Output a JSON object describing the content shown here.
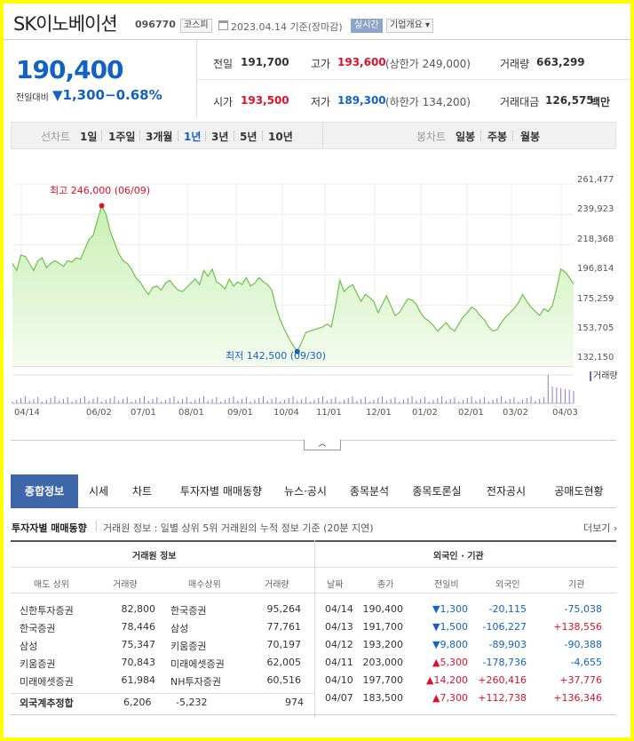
{
  "header": {
    "name": "SK이노베이션",
    "code": "096770",
    "market": "코스피",
    "date": "2023.04.14 기준(장마감)",
    "realtime": "실시간",
    "company": "기업개요 ▾"
  },
  "price": {
    "now": "190,400",
    "change_label": "전일대비",
    "change": "▼1,300",
    "change_pct": "−0.68%"
  },
  "quote": {
    "prev_label": "전일",
    "prev": "191,700",
    "high_label": "고가",
    "high": "193,600",
    "high_sub": "(상한가 249,000)",
    "vol_label": "거래량",
    "vol": "663,299",
    "open_label": "시가",
    "open": "193,500",
    "low_label": "저가",
    "low": "189,300",
    "low_sub": "(하한가 134,200)",
    "amt_label": "거래대금",
    "amt": "126,575",
    "amt_unit": "백만"
  },
  "periods": {
    "label": "선차트",
    "items": [
      "1일",
      "1주일",
      "3개월",
      "1년",
      "3년",
      "5년",
      "10년"
    ],
    "selected": "1년",
    "candle_label": "봉차트",
    "candles": [
      "일봉",
      "주봉",
      "월봉"
    ]
  },
  "chart_data": {
    "type": "line",
    "ylim": [
      132150,
      261477
    ],
    "yticks": [
      "261,477",
      "239,923",
      "218,368",
      "196,814",
      "175,259",
      "153,705",
      "132,150"
    ],
    "xticks": [
      "04/14",
      "06/02",
      "07/01",
      "08/01",
      "09/01",
      "10/04",
      "11/01",
      "12/01",
      "01/02",
      "02/01",
      "03/02",
      "04/03"
    ],
    "max_label": "최고 246,000 (06/09)",
    "min_label": "최저 142,500 (09/30)",
    "volume_label": "거래량",
    "series": [
      {
        "values": [
          205000,
          200000,
          211000,
          210000,
          205000,
          200000,
          207000,
          209000,
          202000,
          205000,
          207000,
          205000,
          203000,
          207000,
          206000,
          209000,
          208000,
          215000,
          222000,
          225000,
          236000,
          246000,
          240000,
          228000,
          220000,
          212000,
          207000,
          205000,
          201000,
          195000,
          192000,
          187000,
          183000,
          188000,
          189000,
          186000,
          191000,
          193000,
          189000,
          186000,
          185000,
          188000,
          191000,
          194000,
          190000,
          200000,
          196000,
          201000,
          192000,
          190000,
          187000,
          194000,
          189000,
          192000,
          190000,
          195000,
          189000,
          191000,
          195000,
          192000,
          190000,
          186000,
          174000,
          165000,
          158000,
          152000,
          147000,
          142500,
          149000,
          156000,
          157000,
          158000,
          159000,
          160000,
          162000,
          160000,
          175000,
          193000,
          185000,
          188000,
          190000,
          184000,
          178000,
          183000,
          181000,
          178000,
          170000,
          176000,
          182000,
          175000,
          168000,
          170000,
          175000,
          180000,
          179000,
          176000,
          170000,
          166000,
          164000,
          161000,
          157000,
          160000,
          163000,
          159000,
          157000,
          162000,
          167000,
          170000,
          174000,
          172000,
          168000,
          165000,
          160000,
          157000,
          158000,
          163000,
          167000,
          170000,
          173000,
          177000,
          183000,
          178000,
          174000,
          171000,
          168000,
          173000,
          171000,
          175000,
          187000,
          201000,
          199000,
          195000,
          190400
        ]
      }
    ]
  },
  "tabs": [
    "종합정보",
    "시세",
    "차트",
    "투자자별 매매동향",
    "뉴스·공시",
    "종목분석",
    "종목토론실",
    "전자공시",
    "공매도현황"
  ],
  "invest": {
    "title": "투자자별 매매동향",
    "desc": "거래원 정보 : 일별 상위 5위 거래원의 누적 정보 기준 (20분 지연)",
    "more": "더보기 ›",
    "left_head": "거래원 정보",
    "right_head": "외국인 · 기관",
    "left_cols": [
      "매도 상위",
      "거래량",
      "매수상위",
      "거래량"
    ],
    "left_rows": [
      [
        "신한투자증권",
        "82,800",
        "한국증권",
        "95,264"
      ],
      [
        "한국증권",
        "78,446",
        "삼성",
        "77,761"
      ],
      [
        "삼성",
        "75,347",
        "키움증권",
        "70,197"
      ],
      [
        "키움증권",
        "70,843",
        "미래에셋증권",
        "62,005"
      ],
      [
        "미래에셋증권",
        "61,984",
        "NH투자증권",
        "60,516"
      ]
    ],
    "foreign_sum": {
      "label": "외국계추정합",
      "sell": "6,206",
      "diff": "-5,232",
      "buy": "974"
    },
    "right_cols": [
      "날짜",
      "종가",
      "전일비",
      "외국인",
      "기관"
    ],
    "right_rows": [
      [
        "04/14",
        "190,400",
        "▼1,300",
        "-20,115",
        "-75,038"
      ],
      [
        "04/13",
        "191,700",
        "▼1,500",
        "-106,227",
        "+138,556"
      ],
      [
        "04/12",
        "193,200",
        "▼9,800",
        "-89,903",
        "-90,388"
      ],
      [
        "04/11",
        "203,000",
        "▲5,300",
        "-178,736",
        "-4,655"
      ],
      [
        "04/10",
        "197,700",
        "▲14,200",
        "+260,416",
        "+37,776"
      ],
      [
        "04/07",
        "183,500",
        "▲7,300",
        "+112,738",
        "+136,346"
      ]
    ]
  }
}
